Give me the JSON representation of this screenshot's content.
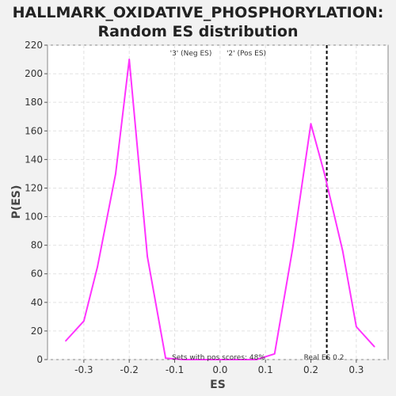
{
  "chart_data": {
    "type": "line",
    "title": "HALLMARK_OXIDATIVE_PHOSPHORYLATION:",
    "subtitle": "Random ES distribution",
    "xlabel": "ES",
    "ylabel": "P(ES)",
    "xlim": [
      -0.38,
      0.37
    ],
    "ylim": [
      0,
      220
    ],
    "x_ticks": [
      -0.3,
      -0.2,
      -0.1,
      0.0,
      0.1,
      0.2,
      0.3
    ],
    "x_tick_labels": [
      "-0.3",
      "-0.2",
      "-0.1",
      "0.0",
      "0.1",
      "0.2",
      "0.3"
    ],
    "y_ticks": [
      0,
      20,
      40,
      60,
      80,
      100,
      120,
      140,
      160,
      180,
      200,
      220
    ],
    "y_tick_labels": [
      "0",
      "20",
      "40",
      "60",
      "80",
      "100",
      "120",
      "140",
      "160",
      "180",
      "200",
      "220"
    ],
    "grid": true,
    "legend_position": "top-center",
    "legend": [
      {
        "label": "'3' (Neg ES)",
        "color": "#0000ff"
      },
      {
        "label": "'2' (Pos ES)",
        "color": "#ff0000"
      }
    ],
    "series": [
      {
        "color": "#ff33ff",
        "x": [
          -0.34,
          -0.3,
          -0.27,
          -0.23,
          -0.2,
          -0.16,
          -0.12,
          -0.08,
          -0.04,
          0.0,
          0.04,
          0.08,
          0.12,
          0.16,
          0.2,
          0.23,
          0.27,
          0.3,
          0.34
        ],
        "y": [
          13,
          27,
          65,
          130,
          210,
          72,
          1,
          0,
          0,
          0,
          0,
          0,
          4,
          78,
          165,
          130,
          76,
          23,
          9
        ]
      }
    ],
    "reference_line": {
      "x": 0.235,
      "style": "dashed",
      "color": "#000000"
    },
    "annotations": [
      {
        "text": "Sets with pos scores: 48%"
      },
      {
        "text": "Real ES 0.2"
      }
    ]
  }
}
